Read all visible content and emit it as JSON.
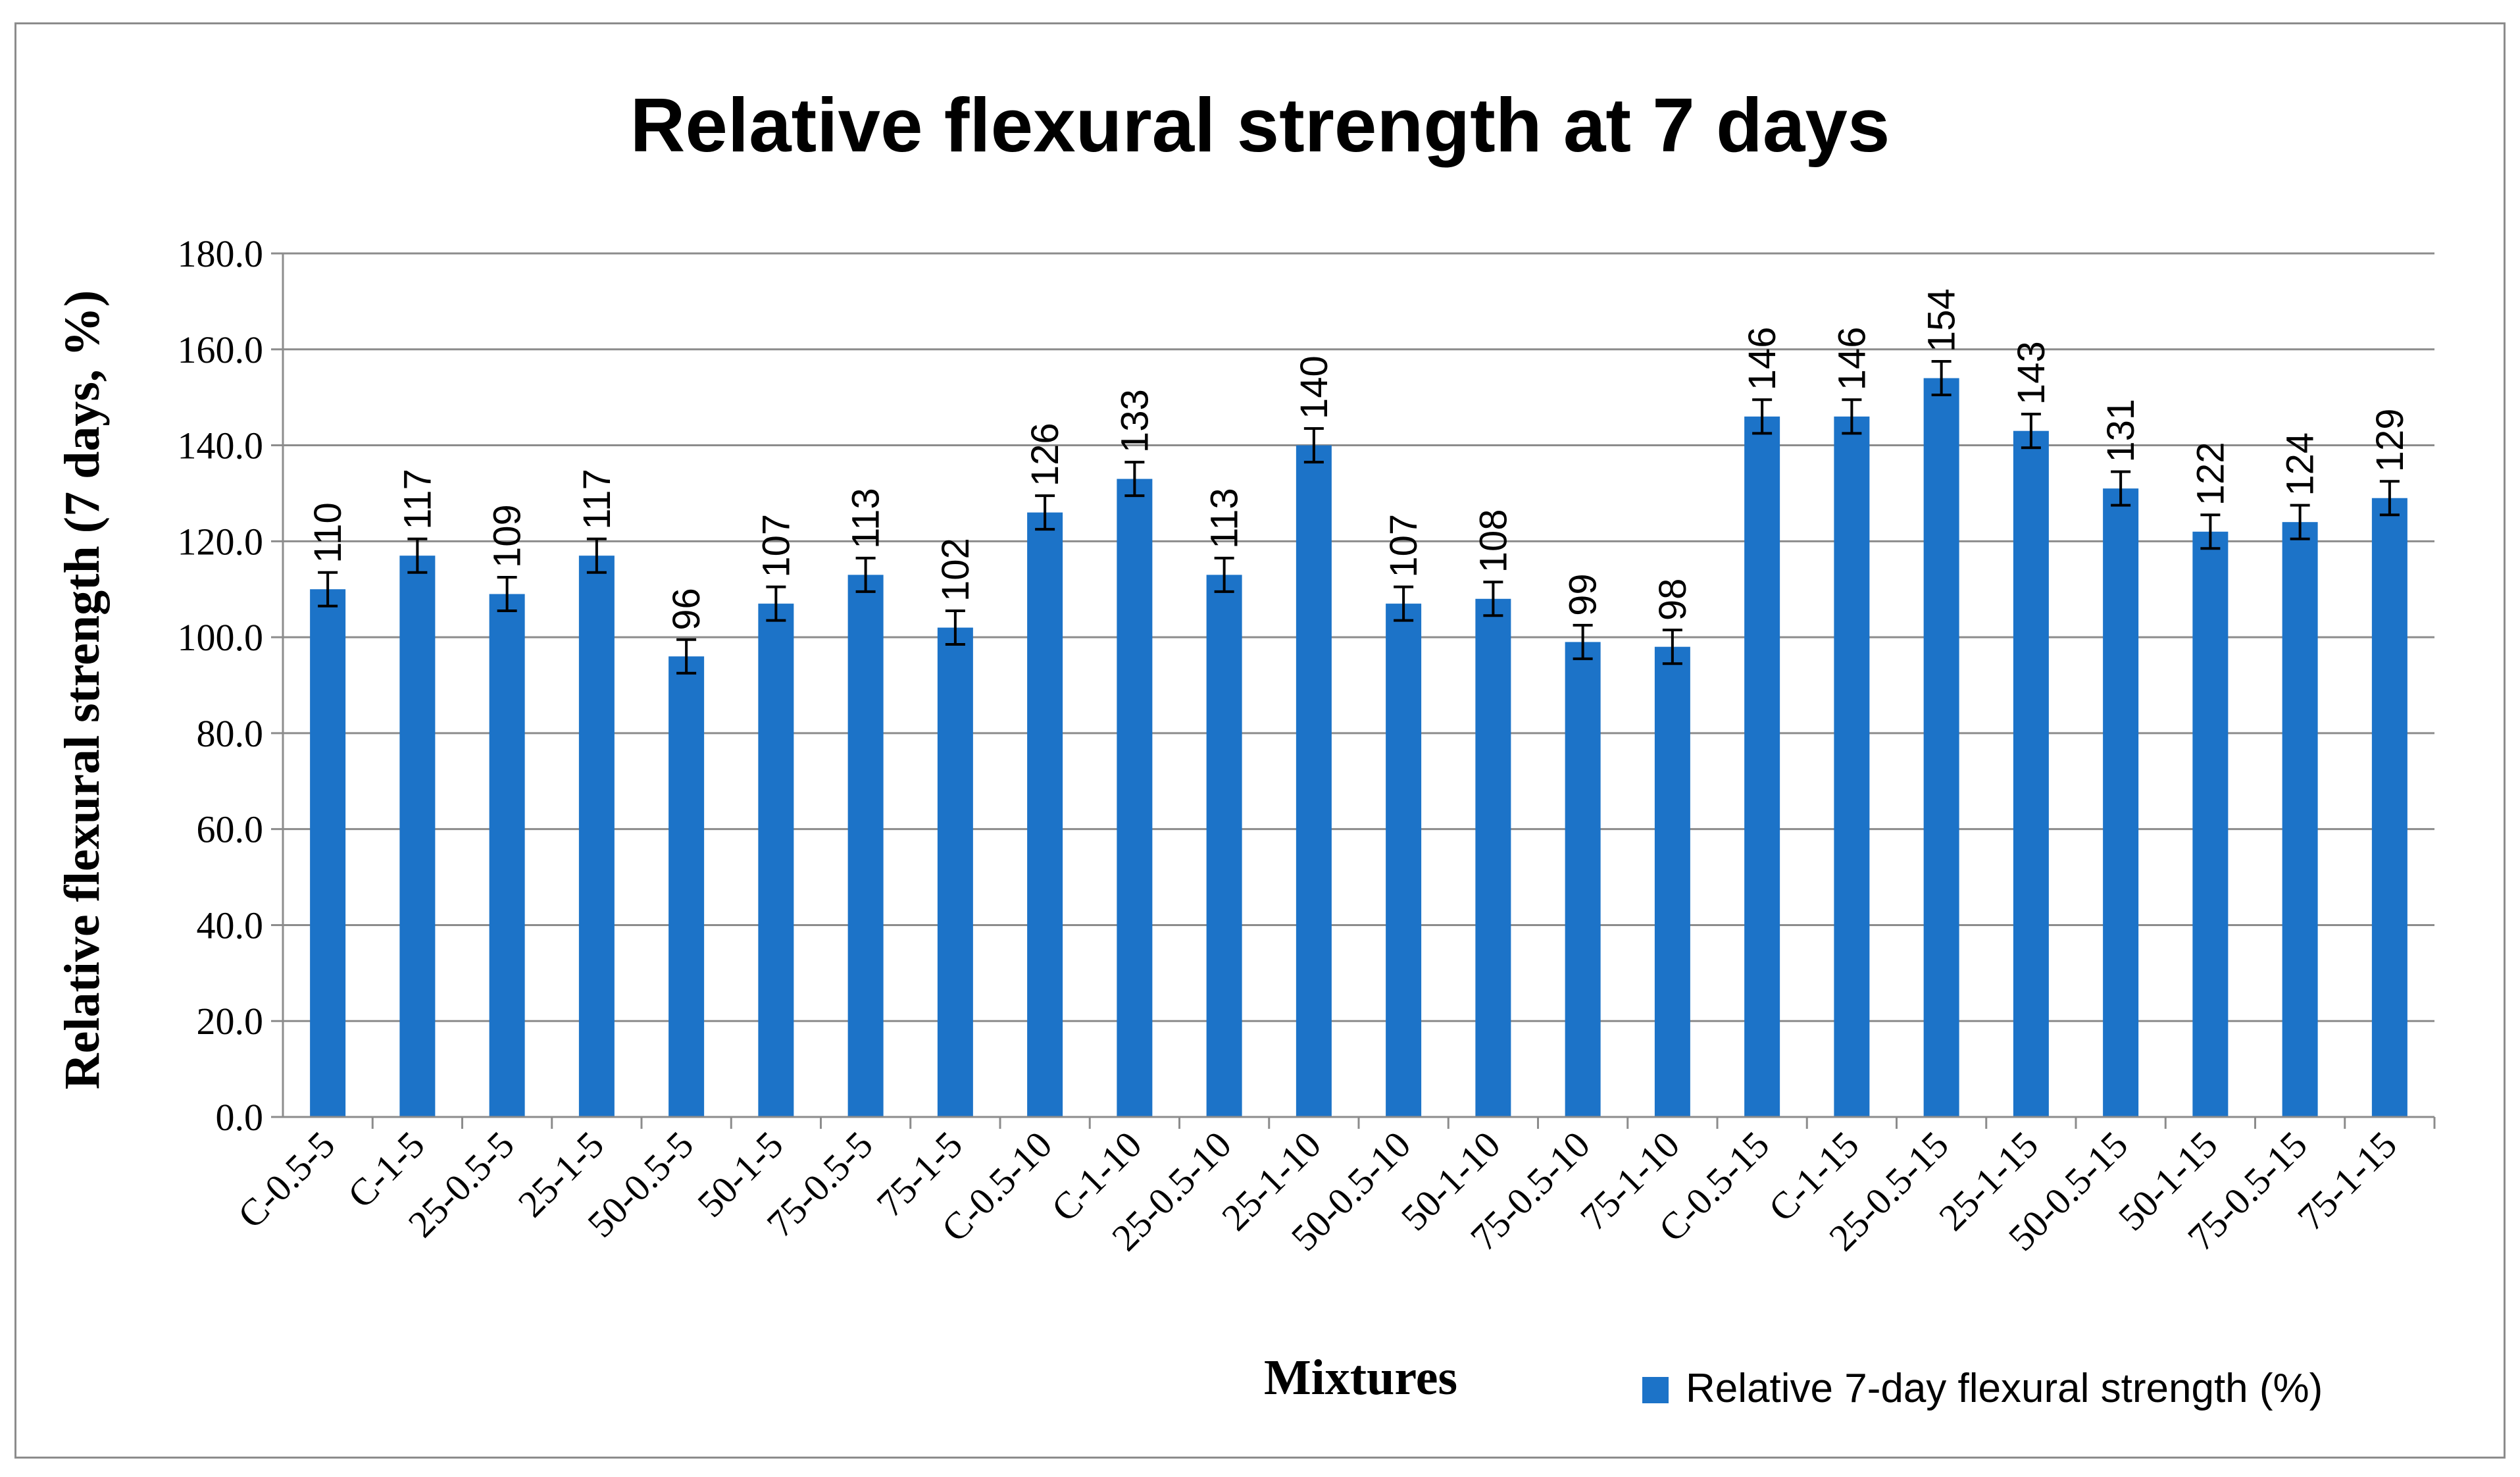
{
  "colors": {
    "bar": "#1c73c8",
    "gridline": "#8c8c8c",
    "axis": "#8c8c8c",
    "frame": "#8c8c8c",
    "error_bar": "#000000",
    "text": "#000000",
    "background": "#ffffff"
  },
  "chart_data": {
    "type": "bar",
    "title": "Relative flexural strength at 7 days",
    "xlabel": "Mixtures",
    "ylabel": "Relative flexural strength (7 days, %)",
    "ylim": [
      0,
      180
    ],
    "yticks": [
      "0.0",
      "20.0",
      "40.0",
      "60.0",
      "80.0",
      "100.0",
      "120.0",
      "140.0",
      "160.0",
      "180.0"
    ],
    "grid": "horizontal",
    "legend_position": "bottom-right",
    "categories": [
      "C-0.5-5",
      "C-1-5",
      "25-0.5-5",
      "25-1-5",
      "50-0.5-5",
      "50-1-5",
      "75-0.5-5",
      "75-1-5",
      "C-0.5-10",
      "C-1-10",
      "25-0.5-10",
      "25-1-10",
      "50-0.5-10",
      "50-1-10",
      "75-0.5-10",
      "75-1-10",
      "C-0.5-15",
      "C-1-15",
      "25-0.5-15",
      "25-1-15",
      "50-0.5-15",
      "50-1-15",
      "75-0.5-15",
      "75-1-15"
    ],
    "series": [
      {
        "name": "Relative 7-day flexural strength (%)",
        "values": [
          110,
          117,
          109,
          117,
          96,
          107,
          113,
          102,
          126,
          133,
          113,
          140,
          107,
          108,
          99,
          98,
          146,
          146,
          154,
          143,
          131,
          122,
          124,
          129
        ],
        "data_labels": [
          "110",
          "117",
          "109",
          "117",
          "96",
          "107",
          "113",
          "102",
          "126",
          "133",
          "113",
          "140",
          "107",
          "108",
          "99",
          "98",
          "146",
          "146",
          "154",
          "143",
          "131",
          "122",
          "124",
          "129"
        ],
        "error": [
          3.5,
          3.5,
          3.5,
          3.5,
          3.5,
          3.5,
          3.5,
          3.5,
          3.5,
          3.5,
          3.5,
          3.5,
          3.5,
          3.5,
          3.5,
          3.5,
          3.5,
          3.5,
          3.5,
          3.5,
          3.5,
          3.5,
          3.5,
          3.5
        ]
      }
    ]
  }
}
